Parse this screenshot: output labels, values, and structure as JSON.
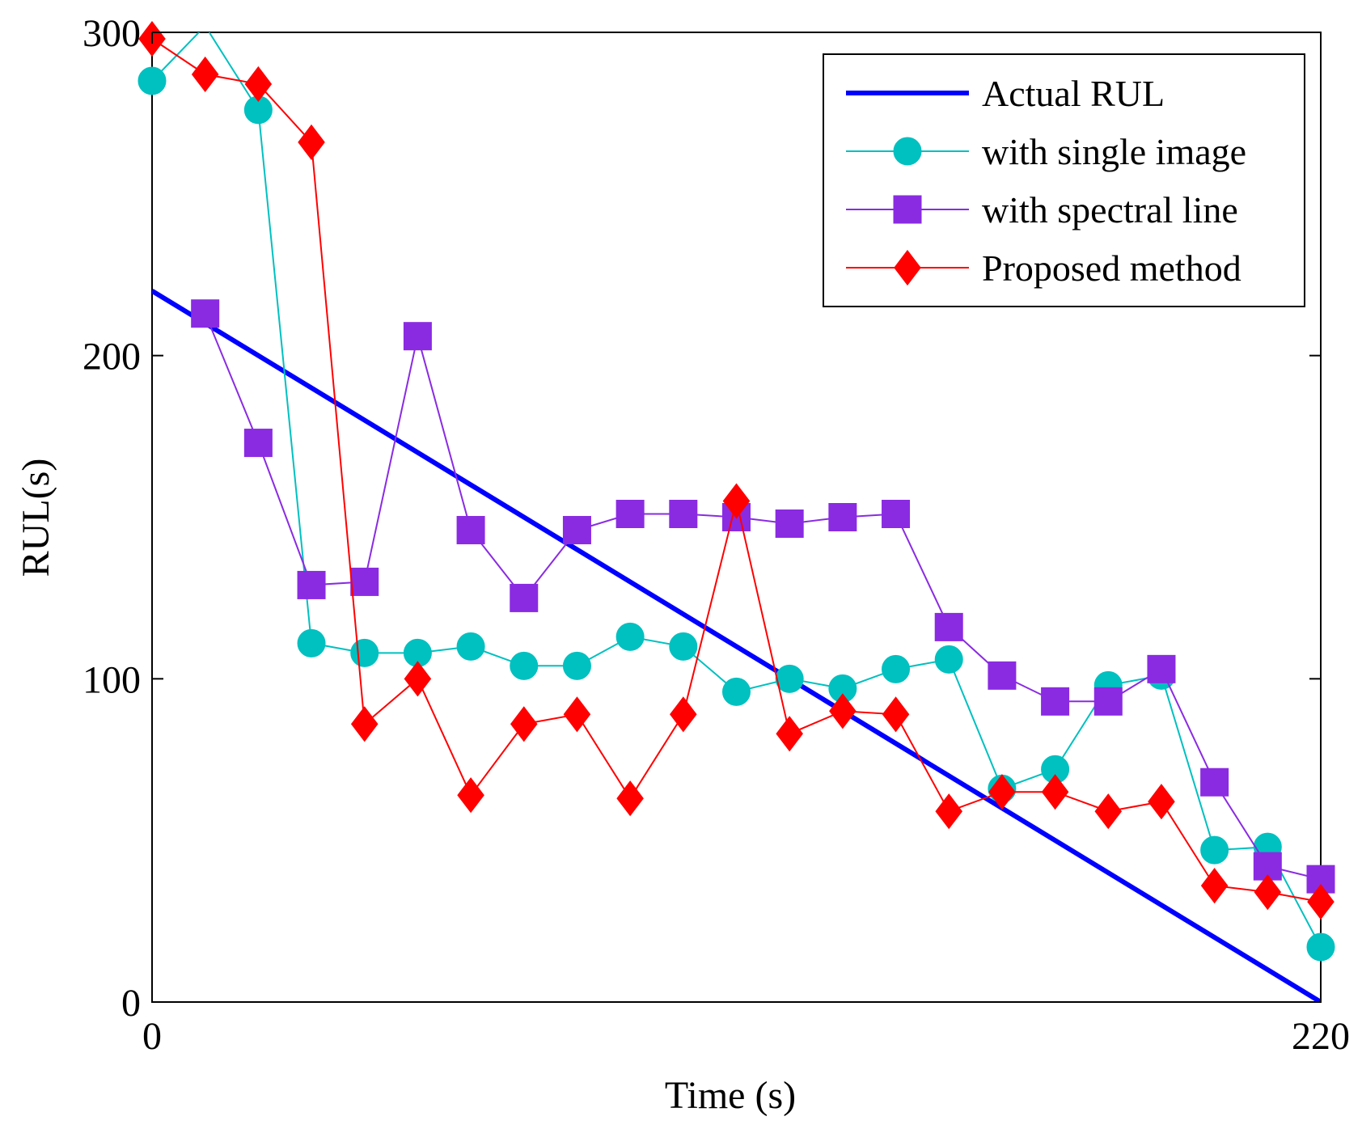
{
  "chart_data": {
    "type": "line",
    "title": "",
    "xlabel": "Time (s)",
    "ylabel": "RUL(s)",
    "xlim": [
      0,
      220
    ],
    "ylim": [
      0,
      300
    ],
    "xticks": [
      0,
      220
    ],
    "yticks": [
      0,
      100,
      200,
      300
    ],
    "grid": false,
    "legend_position": "top-right",
    "series": [
      {
        "name": "Actual RUL",
        "color": "#0000ff",
        "marker": "none",
        "line_width": "thick",
        "x": [
          0,
          60,
          90,
          220
        ],
        "y": [
          220,
          160,
          130,
          0
        ]
      },
      {
        "name": "with single image",
        "color": "#00c0c0",
        "marker": "circle",
        "x": [
          0,
          10,
          20,
          30,
          40,
          50,
          60,
          70,
          80,
          90,
          100,
          110,
          120,
          130,
          140,
          150,
          160,
          170,
          180,
          190,
          200,
          210,
          220
        ],
        "y": [
          285,
          302,
          276,
          111,
          108,
          108,
          110,
          104,
          104,
          113,
          110,
          96,
          100,
          97,
          103,
          106,
          66,
          72,
          98,
          101,
          47,
          48,
          17
        ]
      },
      {
        "name": "with spectral line",
        "color": "#8a2be2",
        "marker": "square",
        "x": [
          10,
          20,
          30,
          40,
          50,
          60,
          70,
          80,
          90,
          100,
          110,
          120,
          130,
          140,
          150,
          160,
          170,
          180,
          190,
          200,
          210,
          220
        ],
        "y": [
          213,
          173,
          129,
          130,
          206,
          146,
          125,
          146,
          151,
          151,
          150,
          148,
          150,
          151,
          116,
          101,
          93,
          93,
          103,
          68,
          42,
          38
        ]
      },
      {
        "name": "Proposed method",
        "color": "#ff0000",
        "marker": "diamond",
        "x": [
          0,
          10,
          20,
          30,
          40,
          50,
          60,
          70,
          80,
          90,
          100,
          110,
          120,
          130,
          140,
          150,
          160,
          170,
          180,
          190,
          200,
          210,
          220
        ],
        "y": [
          298,
          287,
          284,
          266,
          86,
          100,
          64,
          86,
          89,
          63,
          89,
          155,
          83,
          90,
          89,
          59,
          65,
          65,
          59,
          62,
          36,
          34,
          31
        ]
      }
    ]
  }
}
